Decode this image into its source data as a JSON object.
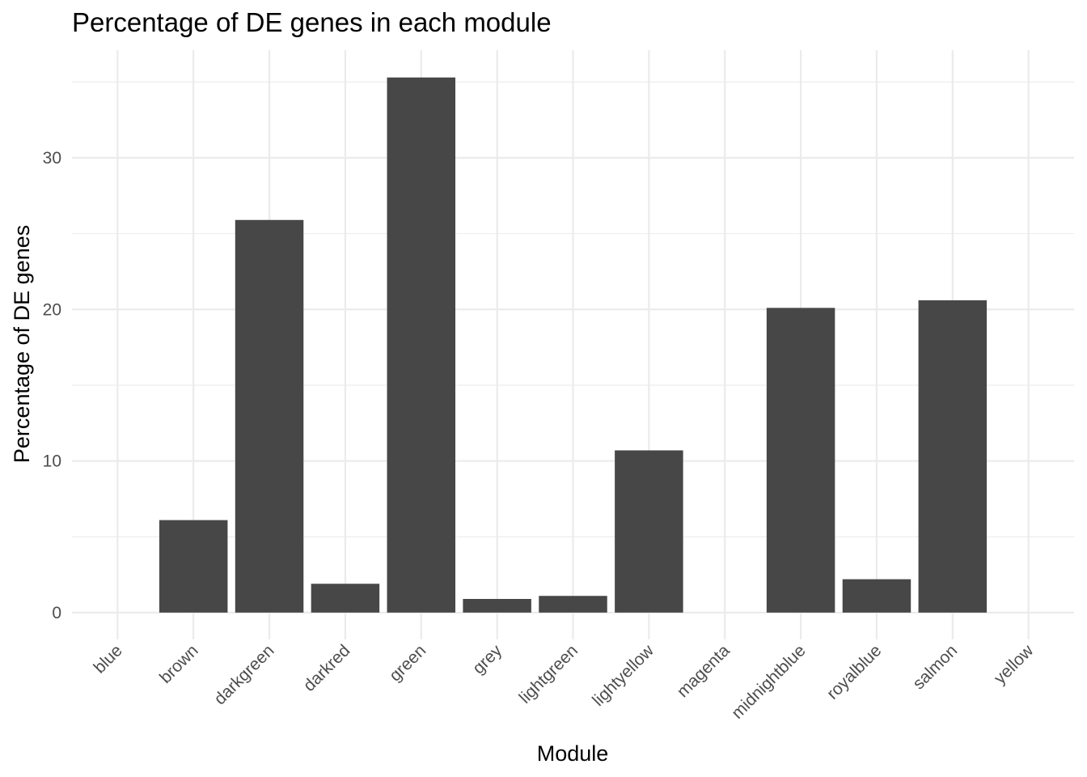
{
  "chart_data": {
    "type": "bar",
    "title": "Percentage of DE genes in each module",
    "xlabel": "Module",
    "ylabel": "Percentage of DE genes",
    "categories": [
      "blue",
      "brown",
      "darkgreen",
      "darkred",
      "green",
      "grey",
      "lightgreen",
      "lightyellow",
      "magenta",
      "midnightblue",
      "royalblue",
      "salmon",
      "yellow"
    ],
    "values": [
      0,
      6.1,
      25.9,
      1.9,
      35.3,
      0.9,
      1.1,
      10.7,
      0,
      20.1,
      2.2,
      20.6,
      0
    ],
    "ylim": [
      -1.77,
      37.1
    ],
    "yticks": [
      0,
      10,
      20,
      30
    ],
    "ytick_labels": [
      "0",
      "10",
      "20",
      "30"
    ],
    "grid": true,
    "legend": "none",
    "bar_color": "#474747",
    "grid_color": "#ebebeb"
  }
}
